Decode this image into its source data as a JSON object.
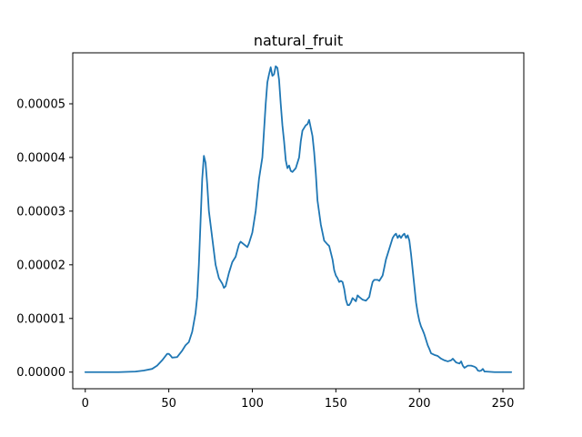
{
  "chart_data": {
    "type": "line",
    "title": "natural_fruit",
    "xlabel": "",
    "ylabel": "",
    "xlim": [
      -7.5,
      262.5
    ],
    "ylim": [
      -3.1e-06,
      5.95e-05
    ],
    "x_ticks": [
      0,
      50,
      100,
      150,
      200,
      250
    ],
    "x_tick_labels": [
      "0",
      "50",
      "100",
      "150",
      "200",
      "250"
    ],
    "y_ticks": [
      0,
      1e-05,
      2e-05,
      3e-05,
      4e-05,
      5e-05
    ],
    "y_tick_labels": [
      "0.00000",
      "0.00001",
      "0.00002",
      "0.00003",
      "0.00004",
      "0.00005"
    ],
    "grid": false,
    "series": [
      {
        "color": "#1f77b4",
        "points": [
          [
            0,
            0.0
          ],
          [
            10,
            0.0
          ],
          [
            20,
            0.0
          ],
          [
            30,
            1e-07
          ],
          [
            35,
            3e-07
          ],
          [
            40,
            6e-07
          ],
          [
            43,
            1.2e-06
          ],
          [
            46,
            2.2e-06
          ],
          [
            48,
            3e-06
          ],
          [
            49,
            3.4e-06
          ],
          [
            50,
            3.4e-06
          ],
          [
            51,
            3.1e-06
          ],
          [
            52,
            2.7e-06
          ],
          [
            55,
            2.8e-06
          ],
          [
            58,
            4e-06
          ],
          [
            60,
            5e-06
          ],
          [
            62,
            5.6e-06
          ],
          [
            64,
            7.5e-06
          ],
          [
            66,
            1.1e-05
          ],
          [
            67,
            1.4e-05
          ],
          [
            68,
            2e-05
          ],
          [
            69,
            2.8e-05
          ],
          [
            70,
            3.6e-05
          ],
          [
            71,
            4.03e-05
          ],
          [
            72,
            3.9e-05
          ],
          [
            73,
            3.5e-05
          ],
          [
            74,
            3e-05
          ],
          [
            76,
            2.5e-05
          ],
          [
            78,
            2e-05
          ],
          [
            80,
            1.75e-05
          ],
          [
            82,
            1.65e-05
          ],
          [
            83,
            1.57e-05
          ],
          [
            84,
            1.6e-05
          ],
          [
            86,
            1.85e-05
          ],
          [
            88,
            2.05e-05
          ],
          [
            90,
            2.15e-05
          ],
          [
            92,
            2.38e-05
          ],
          [
            93,
            2.43e-05
          ],
          [
            95,
            2.38e-05
          ],
          [
            97,
            2.33e-05
          ],
          [
            98,
            2.4e-05
          ],
          [
            100,
            2.6e-05
          ],
          [
            102,
            3e-05
          ],
          [
            104,
            3.6e-05
          ],
          [
            106,
            4e-05
          ],
          [
            107,
            4.5e-05
          ],
          [
            108,
            5e-05
          ],
          [
            109,
            5.4e-05
          ],
          [
            110,
            5.55e-05
          ],
          [
            111,
            5.68e-05
          ],
          [
            112,
            5.52e-05
          ],
          [
            113,
            5.55e-05
          ],
          [
            114,
            5.7e-05
          ],
          [
            115,
            5.67e-05
          ],
          [
            116,
            5.45e-05
          ],
          [
            117,
            5e-05
          ],
          [
            118,
            4.6e-05
          ],
          [
            119,
            4.3e-05
          ],
          [
            120,
            3.95e-05
          ],
          [
            121,
            3.8e-05
          ],
          [
            122,
            3.85e-05
          ],
          [
            123,
            3.75e-05
          ],
          [
            124,
            3.73e-05
          ],
          [
            126,
            3.8e-05
          ],
          [
            128,
            4e-05
          ],
          [
            129,
            4.3e-05
          ],
          [
            130,
            4.5e-05
          ],
          [
            132,
            4.6e-05
          ],
          [
            133,
            4.62e-05
          ],
          [
            134,
            4.7e-05
          ],
          [
            135,
            4.55e-05
          ],
          [
            136,
            4.4e-05
          ],
          [
            137,
            4.1e-05
          ],
          [
            138,
            3.7e-05
          ],
          [
            139,
            3.2e-05
          ],
          [
            141,
            2.75e-05
          ],
          [
            143,
            2.45e-05
          ],
          [
            145,
            2.38e-05
          ],
          [
            146,
            2.35e-05
          ],
          [
            148,
            2.1e-05
          ],
          [
            149,
            1.9e-05
          ],
          [
            150,
            1.8e-05
          ],
          [
            151,
            1.75e-05
          ],
          [
            152,
            1.68e-05
          ],
          [
            153,
            1.7e-05
          ],
          [
            154,
            1.68e-05
          ],
          [
            155,
            1.55e-05
          ],
          [
            156,
            1.35e-05
          ],
          [
            157,
            1.25e-05
          ],
          [
            158,
            1.25e-05
          ],
          [
            159,
            1.3e-05
          ],
          [
            160,
            1.38e-05
          ],
          [
            161,
            1.35e-05
          ],
          [
            162,
            1.32e-05
          ],
          [
            163,
            1.43e-05
          ],
          [
            164,
            1.4e-05
          ],
          [
            166,
            1.35e-05
          ],
          [
            168,
            1.33e-05
          ],
          [
            170,
            1.4e-05
          ],
          [
            171,
            1.55e-05
          ],
          [
            172,
            1.68e-05
          ],
          [
            173,
            1.72e-05
          ],
          [
            175,
            1.72e-05
          ],
          [
            176,
            1.7e-05
          ],
          [
            178,
            1.8e-05
          ],
          [
            179,
            1.95e-05
          ],
          [
            180,
            2.1e-05
          ],
          [
            182,
            2.3e-05
          ],
          [
            184,
            2.5e-05
          ],
          [
            185,
            2.55e-05
          ],
          [
            186,
            2.58e-05
          ],
          [
            187,
            2.5e-05
          ],
          [
            188,
            2.55e-05
          ],
          [
            189,
            2.5e-05
          ],
          [
            190,
            2.55e-05
          ],
          [
            191,
            2.58e-05
          ],
          [
            192,
            2.5e-05
          ],
          [
            193,
            2.55e-05
          ],
          [
            194,
            2.45e-05
          ],
          [
            195,
            2.2e-05
          ],
          [
            196,
            1.9e-05
          ],
          [
            197,
            1.6e-05
          ],
          [
            198,
            1.3e-05
          ],
          [
            199,
            1.1e-05
          ],
          [
            200,
            9.5e-06
          ],
          [
            201,
            8.5e-06
          ],
          [
            202,
            7.8e-06
          ],
          [
            203,
            7e-06
          ],
          [
            204,
            6e-06
          ],
          [
            205,
            5e-06
          ],
          [
            206,
            4.3e-06
          ],
          [
            207,
            3.5e-06
          ],
          [
            209,
            3.2e-06
          ],
          [
            211,
            3e-06
          ],
          [
            213,
            2.5e-06
          ],
          [
            215,
            2.2e-06
          ],
          [
            217,
            2e-06
          ],
          [
            219,
            2.2e-06
          ],
          [
            220,
            2.5e-06
          ],
          [
            222,
            1.8e-06
          ],
          [
            224,
            1.6e-06
          ],
          [
            225,
            2e-06
          ],
          [
            226,
            1.2e-06
          ],
          [
            227,
            8e-07
          ],
          [
            229,
            1.2e-06
          ],
          [
            231,
            1.2e-06
          ],
          [
            233,
            1e-06
          ],
          [
            234,
            8e-07
          ],
          [
            235,
            3e-07
          ],
          [
            236,
            2e-07
          ],
          [
            237,
            3e-07
          ],
          [
            238,
            6e-07
          ],
          [
            239,
            1e-07
          ],
          [
            240,
            1e-07
          ],
          [
            245,
            0.0
          ],
          [
            250,
            0.0
          ],
          [
            255,
            0.0
          ]
        ]
      }
    ]
  }
}
